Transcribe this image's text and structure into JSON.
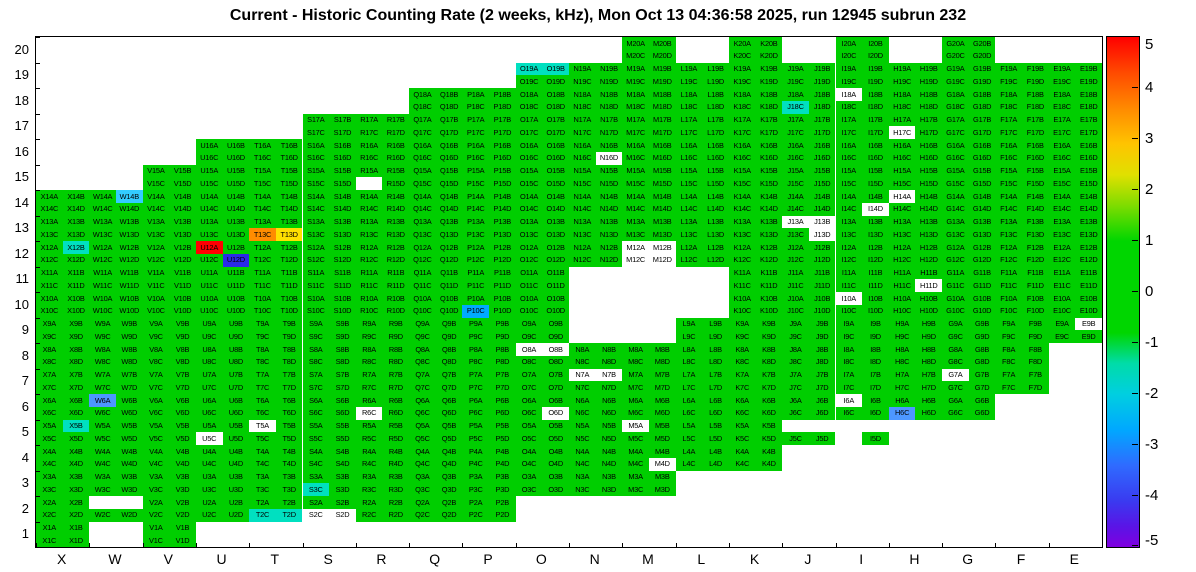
{
  "chart_data": {
    "type": "heatmap",
    "title": "Current - Historic Counting Rate (2 weeks, kHz), Mon Oct 13 04:36:58 2025, run 12945 subrun 232",
    "x_labels": [
      "X",
      "W",
      "V",
      "U",
      "T",
      "S",
      "R",
      "Q",
      "P",
      "O",
      "N",
      "M",
      "L",
      "K",
      "J",
      "I",
      "H",
      "G",
      "F",
      "E"
    ],
    "y_labels": [
      "20",
      "19",
      "18",
      "17",
      "16",
      "15",
      "14",
      "13",
      "12",
      "11",
      "10",
      "9",
      "8",
      "7",
      "6",
      "5",
      "4",
      "3",
      "2",
      "1"
    ],
    "subcells": [
      "A",
      "B",
      "C",
      "D"
    ],
    "value_range": [
      -5,
      5
    ],
    "default_value_color": "#00CE00",
    "rows_present": {
      "1": [
        "X",
        "V"
      ],
      "2": [
        "X",
        "W",
        "V",
        "U",
        "T",
        "S",
        "R",
        "Q",
        "P"
      ],
      "3": [
        "X",
        "W",
        "V",
        "U",
        "T",
        "S",
        "R",
        "Q",
        "P",
        "O",
        "N",
        "M"
      ],
      "4": [
        "X",
        "W",
        "V",
        "U",
        "T",
        "S",
        "R",
        "Q",
        "P",
        "O",
        "N",
        "M",
        "L",
        "K"
      ],
      "5": [
        "X",
        "W",
        "V",
        "U",
        "T",
        "S",
        "R",
        "Q",
        "P",
        "O",
        "N",
        "M",
        "L",
        "K",
        "J",
        "I"
      ],
      "6": [
        "X",
        "W",
        "V",
        "U",
        "T",
        "S",
        "R",
        "Q",
        "P",
        "O",
        "N",
        "M",
        "L",
        "K",
        "J",
        "I",
        "H",
        "G"
      ],
      "7": [
        "X",
        "W",
        "V",
        "U",
        "T",
        "S",
        "R",
        "Q",
        "P",
        "O",
        "N",
        "M",
        "L",
        "K",
        "J",
        "I",
        "H",
        "G",
        "F"
      ],
      "8": [
        "X",
        "W",
        "V",
        "U",
        "T",
        "S",
        "R",
        "Q",
        "P",
        "O",
        "N",
        "M",
        "L",
        "K",
        "J",
        "I",
        "H",
        "G",
        "F"
      ],
      "9": [
        "X",
        "W",
        "V",
        "U",
        "T",
        "S",
        "R",
        "Q",
        "P",
        "O",
        "L",
        "K",
        "J",
        "I",
        "H",
        "G",
        "F",
        "E"
      ],
      "10": [
        "X",
        "W",
        "V",
        "U",
        "T",
        "S",
        "R",
        "Q",
        "P",
        "O",
        "K",
        "J",
        "I",
        "H",
        "G",
        "F",
        "E"
      ],
      "11": [
        "X",
        "W",
        "V",
        "U",
        "T",
        "S",
        "R",
        "Q",
        "P",
        "O",
        "K",
        "J",
        "I",
        "H",
        "G",
        "F",
        "E"
      ],
      "12": [
        "X",
        "W",
        "V",
        "U",
        "T",
        "S",
        "R",
        "Q",
        "P",
        "O",
        "N",
        "M",
        "L",
        "K",
        "J",
        "I",
        "H",
        "G",
        "F",
        "E"
      ],
      "13": [
        "X",
        "W",
        "V",
        "U",
        "T",
        "S",
        "R",
        "Q",
        "P",
        "O",
        "N",
        "M",
        "L",
        "K",
        "J",
        "I",
        "H",
        "G",
        "F",
        "E"
      ],
      "14": [
        "X",
        "W",
        "V",
        "U",
        "T",
        "S",
        "R",
        "Q",
        "P",
        "O",
        "N",
        "M",
        "L",
        "K",
        "J",
        "I",
        "H",
        "G",
        "F",
        "E"
      ],
      "15": [
        "V",
        "U",
        "T",
        "S",
        "R",
        "Q",
        "P",
        "O",
        "N",
        "M",
        "L",
        "K",
        "J",
        "I",
        "H",
        "G",
        "F",
        "E"
      ],
      "16": [
        "U",
        "T",
        "S",
        "R",
        "Q",
        "P",
        "O",
        "N",
        "M",
        "L",
        "K",
        "J",
        "I",
        "H",
        "G",
        "F",
        "E"
      ],
      "17": [
        "S",
        "R",
        "Q",
        "P",
        "O",
        "N",
        "M",
        "L",
        "K",
        "J",
        "I",
        "H",
        "G",
        "F",
        "E"
      ],
      "18": [
        "Q",
        "P",
        "O",
        "N",
        "M",
        "L",
        "K",
        "J",
        "I",
        "H",
        "G",
        "F",
        "E"
      ],
      "19": [
        "O",
        "N",
        "M",
        "L",
        "K",
        "J",
        "I",
        "H",
        "G",
        "F",
        "E"
      ],
      "20": [
        "M",
        "K",
        "I",
        "G"
      ]
    },
    "cell_overrides": {
      "U12A": "red",
      "U12D": "darkblue",
      "T13C": "orange",
      "T13D": "yellow",
      "W14B": "lightblue",
      "W6A": "blue",
      "H6C": "blue",
      "X12B": "cyan",
      "X5B": "cyan",
      "S3C": "cyan",
      "T2C": "cyan",
      "T2D": "cyan",
      "S2C": "white",
      "S2D": "white",
      "O19A": "cyan",
      "O19B": "cyan",
      "J18C": "cyan",
      "I18A": "white",
      "H17C": "white",
      "N16D": "white",
      "I14D": "white",
      "H14A": "white",
      "J13A": "white",
      "J13B": "white",
      "J13D": "white",
      "M12A": "white",
      "M12B": "white",
      "M12C": "white",
      "M12D": "white",
      "H11D": "white",
      "P10C": "skyblue",
      "I10A": "white",
      "E9B": "white",
      "O8A": "white",
      "O8B": "white",
      "G7A": "white",
      "N7A": "white",
      "N7B": "white",
      "I6A": "white",
      "R6C": "white",
      "O6D": "white",
      "M5A": "white",
      "T5A": "white",
      "U5C": "white",
      "M4D": "white"
    },
    "hidden_cells": [
      "W2A",
      "W2B",
      "R15C",
      "J5A",
      "J5B",
      "I5A",
      "I5B",
      "I5C"
    ],
    "palette": {
      "red": "#FF0000",
      "orange": "#FF8C00",
      "yellow": "#FFE000",
      "cyan": "#00E0C0",
      "lightblue": "#33CCFF",
      "blue": "#4D97FF",
      "darkblue": "#2A2AE8",
      "skyblue": "#00AAFF",
      "white": "#FFFFFF"
    },
    "colorbar": {
      "tick_labels": [
        "5",
        "4",
        "3",
        "2",
        "1",
        "0",
        "-1",
        "-2",
        "-3",
        "-4",
        "-5"
      ],
      "gradient": [
        [
          "0",
          "#FF0000"
        ],
        [
          "0.07",
          "#FF4A00"
        ],
        [
          "0.14",
          "#FF8A00"
        ],
        [
          "0.21",
          "#FFC400"
        ],
        [
          "0.27",
          "#E0E000"
        ],
        [
          "0.33",
          "#7FDC00"
        ],
        [
          "0.40",
          "#00D600"
        ],
        [
          "0.58",
          "#00D600"
        ],
        [
          "0.64",
          "#00DCA8"
        ],
        [
          "0.70",
          "#00CFE0"
        ],
        [
          "0.77",
          "#00A8FF"
        ],
        [
          "0.84",
          "#2F6BFF"
        ],
        [
          "0.91",
          "#3A3AF0"
        ],
        [
          "0.96",
          "#5A14E6"
        ],
        [
          "1",
          "#7F00E0"
        ]
      ]
    }
  }
}
